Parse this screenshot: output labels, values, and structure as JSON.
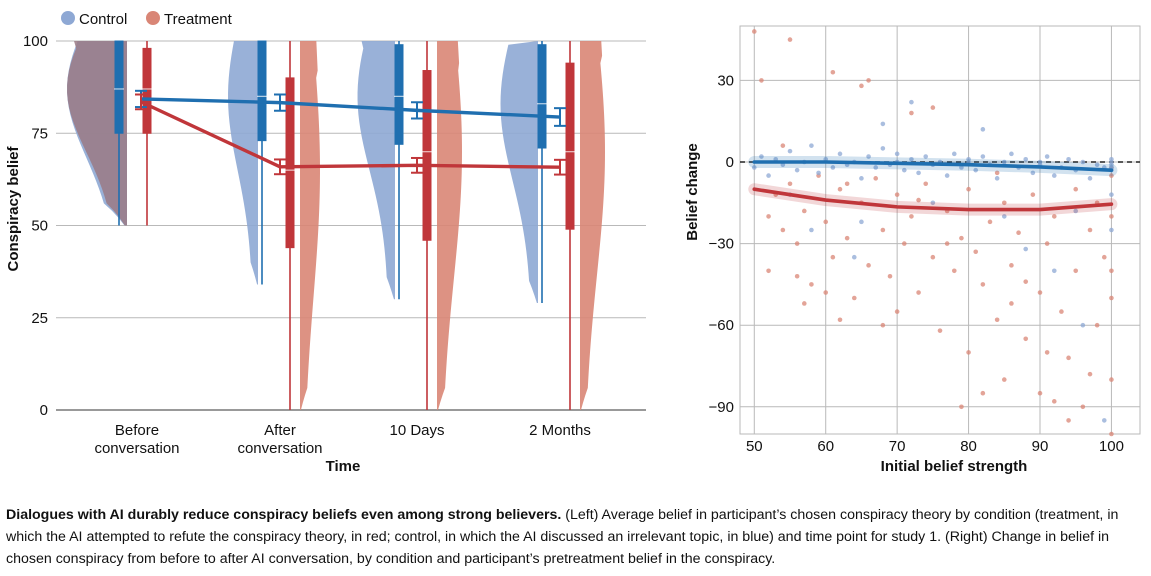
{
  "colors": {
    "control": "#1f6fb0",
    "treatment": "#c0363a",
    "control_light": "#8ea8d4",
    "treatment_light": "#d98676",
    "overlap": "#9a7a85",
    "grid": "#b9b9b9"
  },
  "caption": {
    "title": "Dialogues with AI durably reduce conspiracy beliefs even among strong believers.",
    "body": " (Left) Average belief in participant’s chosen conspiracy theory by condition (treatment, in which the AI attempted to refute the conspiracy theory, in red; control, in which the AI discussed an irrelevant topic, in blue) and time point for study 1. (Right) Change in belief in chosen conspiracy from before to after AI conversation, by condition and participant’s pretreatment belief in the conspiracy."
  },
  "chart_data": [
    {
      "type": "line",
      "subtype": "violin-box-line",
      "legend": {
        "position": "top-left",
        "entries": [
          "Control",
          "Treatment"
        ]
      },
      "xlabel": "Time",
      "ylabel": "Conspiracy belief",
      "categories": [
        {
          "label_lines": [
            "Before",
            "conversation"
          ]
        },
        {
          "label_lines": [
            "After",
            "conversation"
          ]
        },
        {
          "label_lines": [
            "10 Days"
          ]
        },
        {
          "label_lines": [
            "2 Months"
          ]
        }
      ],
      "ylim": [
        0,
        100
      ],
      "yticks": [
        0,
        25,
        50,
        75,
        100
      ],
      "grid": true,
      "series": [
        {
          "name": "Control",
          "color_key": "control",
          "means": [
            84.3,
            83.3,
            81.2,
            79.4
          ],
          "ci_half_width": [
            2.2,
            2.2,
            2.2,
            2.4
          ],
          "boxes": [
            {
              "q1": 75,
              "median": 87,
              "q3": 100,
              "whisker_low": 50,
              "whisker_high": 100
            },
            {
              "q1": 73,
              "median": 85,
              "q3": 100,
              "whisker_low": 34,
              "whisker_high": 100
            },
            {
              "q1": 72,
              "median": 85,
              "q3": 99,
              "whisker_low": 30,
              "whisker_high": 100
            },
            {
              "q1": 71,
              "median": 83,
              "q3": 99,
              "whisker_low": 29,
              "whisker_high": 100
            }
          ]
        },
        {
          "name": "Treatment",
          "color_key": "treatment",
          "means": [
            83.5,
            65.9,
            66.3,
            65.8
          ],
          "ci_half_width": [
            2.0,
            2.0,
            2.0,
            2.0
          ],
          "boxes": [
            {
              "q1": 75,
              "median": 87,
              "q3": 98,
              "whisker_low": 50,
              "whisker_high": 100
            },
            {
              "q1": 44,
              "median": 65,
              "q3": 90,
              "whisker_low": 0,
              "whisker_high": 100
            },
            {
              "q1": 46,
              "median": 70,
              "q3": 92,
              "whisker_low": 0,
              "whisker_high": 100
            },
            {
              "q1": 49,
              "median": 70,
              "q3": 94,
              "whisker_low": 0,
              "whisker_high": 100
            }
          ]
        }
      ]
    },
    {
      "type": "scatter",
      "xlabel": "Initial belief strength",
      "ylabel": "Belief change",
      "xlim": [
        48,
        104
      ],
      "ylim": [
        -100,
        50
      ],
      "xticks": [
        50,
        60,
        70,
        80,
        90,
        100
      ],
      "yticks": [
        30,
        0,
        -30,
        -60,
        -90
      ],
      "ytick_labels": [
        "30",
        "0",
        "−30",
        "−60",
        "−90"
      ],
      "grid": true,
      "reference_line": 0,
      "series": [
        {
          "name": "Control",
          "color_key": "control",
          "trend": {
            "x": [
              50,
              60,
              70,
              80,
              90,
              100
            ],
            "y": [
              0,
              0,
              -0.5,
              -1,
              -1.8,
              -3
            ]
          },
          "points": [
            [
              50,
              -2
            ],
            [
              51,
              2
            ],
            [
              52,
              -5
            ],
            [
              53,
              1
            ],
            [
              54,
              -1
            ],
            [
              55,
              4
            ],
            [
              56,
              -3
            ],
            [
              57,
              0
            ],
            [
              58,
              6
            ],
            [
              59,
              -4
            ],
            [
              60,
              1
            ],
            [
              61,
              -2
            ],
            [
              62,
              3
            ],
            [
              63,
              -1
            ],
            [
              64,
              0
            ],
            [
              65,
              -6
            ],
            [
              66,
              2
            ],
            [
              67,
              -2
            ],
            [
              68,
              5
            ],
            [
              69,
              -1
            ],
            [
              70,
              0
            ],
            [
              70,
              3
            ],
            [
              71,
              -3
            ],
            [
              72,
              1
            ],
            [
              73,
              -4
            ],
            [
              74,
              2
            ],
            [
              75,
              -1
            ],
            [
              76,
              0
            ],
            [
              77,
              -5
            ],
            [
              78,
              3
            ],
            [
              79,
              -2
            ],
            [
              80,
              0
            ],
            [
              80,
              1
            ],
            [
              81,
              -3
            ],
            [
              82,
              2
            ],
            [
              83,
              -1
            ],
            [
              84,
              -6
            ],
            [
              85,
              0
            ],
            [
              86,
              3
            ],
            [
              87,
              -2
            ],
            [
              88,
              1
            ],
            [
              89,
              -4
            ],
            [
              90,
              0
            ],
            [
              90,
              -1
            ],
            [
              91,
              2
            ],
            [
              92,
              -5
            ],
            [
              93,
              -2
            ],
            [
              94,
              1
            ],
            [
              95,
              -3
            ],
            [
              96,
              0
            ],
            [
              97,
              -6
            ],
            [
              98,
              -1
            ],
            [
              99,
              -2
            ],
            [
              100,
              0
            ],
            [
              100,
              -1
            ],
            [
              100,
              -2
            ],
            [
              100,
              -3
            ],
            [
              100,
              1
            ],
            [
              100,
              -12
            ],
            [
              100,
              -25
            ],
            [
              95,
              -18
            ],
            [
              85,
              -20
            ],
            [
              75,
              -15
            ],
            [
              65,
              -22
            ],
            [
              55,
              -12
            ],
            [
              72,
              22
            ],
            [
              64,
              -35
            ],
            [
              88,
              -32
            ],
            [
              92,
              -40
            ],
            [
              96,
              -60
            ],
            [
              99,
              -95
            ],
            [
              82,
              12
            ],
            [
              68,
              14
            ],
            [
              58,
              -25
            ]
          ]
        },
        {
          "name": "Treatment",
          "color_key": "treatment",
          "trend": {
            "x": [
              50,
              60,
              70,
              80,
              90,
              100
            ],
            "y": [
              -10,
              -14,
              -16.5,
              -17.5,
              -17.5,
              -15.5
            ]
          },
          "points": [
            [
              50,
              48
            ],
            [
              51,
              30
            ],
            [
              52,
              -40
            ],
            [
              53,
              -12
            ],
            [
              54,
              -25
            ],
            [
              55,
              45
            ],
            [
              55,
              -8
            ],
            [
              56,
              -30
            ],
            [
              57,
              -18
            ],
            [
              58,
              -45
            ],
            [
              59,
              -5
            ],
            [
              60,
              -22
            ],
            [
              61,
              -35
            ],
            [
              61,
              33
            ],
            [
              62,
              -10
            ],
            [
              63,
              -28
            ],
            [
              64,
              -50
            ],
            [
              65,
              -15
            ],
            [
              66,
              30
            ],
            [
              66,
              -38
            ],
            [
              67,
              -6
            ],
            [
              68,
              -25
            ],
            [
              69,
              -42
            ],
            [
              70,
              -12
            ],
            [
              70,
              -55
            ],
            [
              71,
              -30
            ],
            [
              72,
              -20
            ],
            [
              73,
              -48
            ],
            [
              74,
              -8
            ],
            [
              75,
              -35
            ],
            [
              75,
              20
            ],
            [
              76,
              -62
            ],
            [
              77,
              -18
            ],
            [
              78,
              -40
            ],
            [
              79,
              -28
            ],
            [
              80,
              -10
            ],
            [
              80,
              -70
            ],
            [
              81,
              -33
            ],
            [
              82,
              -45
            ],
            [
              83,
              -22
            ],
            [
              84,
              -58
            ],
            [
              85,
              -15
            ],
            [
              85,
              -80
            ],
            [
              86,
              -38
            ],
            [
              87,
              -26
            ],
            [
              88,
              -65
            ],
            [
              89,
              -12
            ],
            [
              90,
              -48
            ],
            [
              90,
              -85
            ],
            [
              91,
              -30
            ],
            [
              92,
              -20
            ],
            [
              93,
              -55
            ],
            [
              94,
              -72
            ],
            [
              95,
              -40
            ],
            [
              95,
              -10
            ],
            [
              96,
              -90
            ],
            [
              97,
              -25
            ],
            [
              98,
              -60
            ],
            [
              99,
              -35
            ],
            [
              100,
              -2
            ],
            [
              100,
              -20
            ],
            [
              100,
              -50
            ],
            [
              100,
              -80
            ],
            [
              100,
              -100
            ],
            [
              100,
              -5
            ],
            [
              100,
              -40
            ],
            [
              52,
              -20
            ],
            [
              57,
              -52
            ],
            [
              63,
              -8
            ],
            [
              68,
              -60
            ],
            [
              73,
              -14
            ],
            [
              77,
              -30
            ],
            [
              82,
              -85
            ],
            [
              86,
              -52
            ],
            [
              91,
              -70
            ],
            [
              94,
              -95
            ],
            [
              98,
              -15
            ],
            [
              54,
              6
            ],
            [
              60,
              -48
            ],
            [
              79,
              -90
            ],
            [
              88,
              -44
            ],
            [
              65,
              28
            ],
            [
              72,
              18
            ],
            [
              84,
              -4
            ],
            [
              56,
              -42
            ],
            [
              62,
              -58
            ],
            [
              92,
              -88
            ],
            [
              97,
              -78
            ]
          ]
        }
      ]
    }
  ]
}
